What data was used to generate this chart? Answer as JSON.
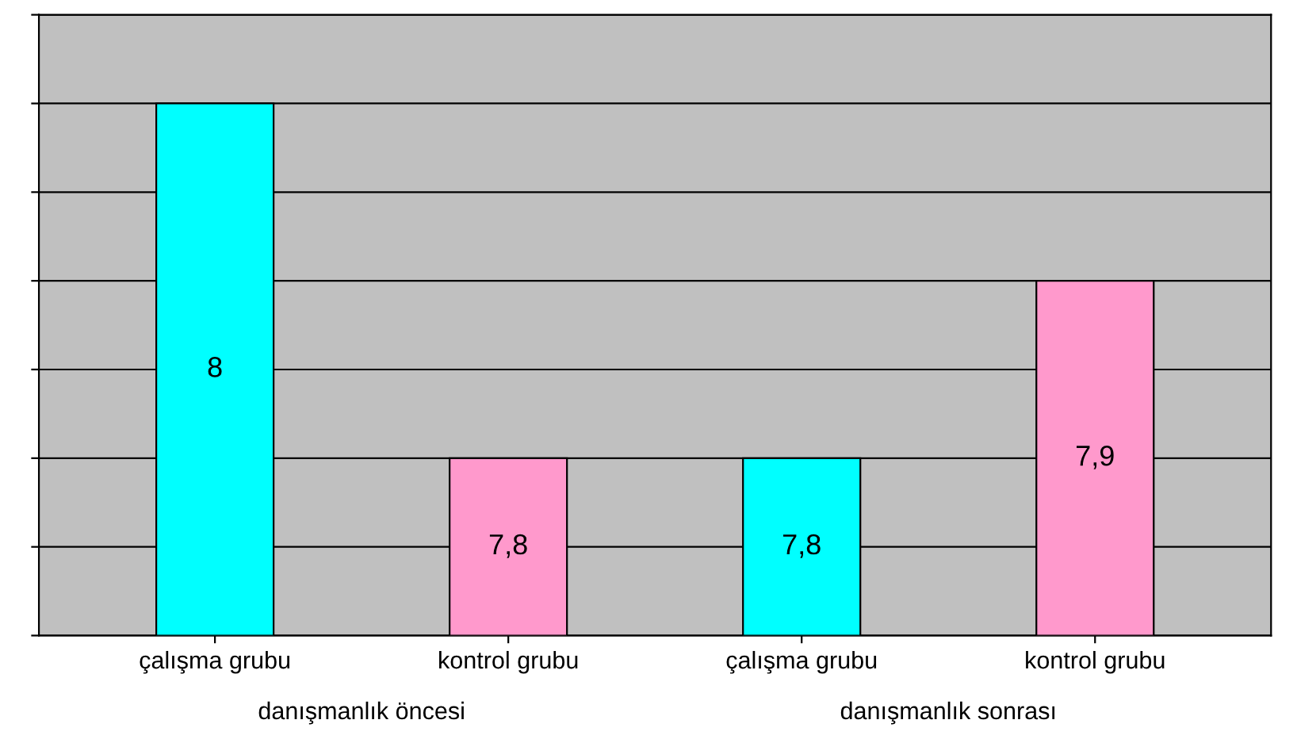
{
  "chart_data": {
    "type": "bar",
    "categories": [
      "çalışma grubu",
      "kontrol grubu",
      "çalışma grubu",
      "kontrol grubu"
    ],
    "values": [
      8,
      7.8,
      7.8,
      7.9
    ],
    "value_labels": [
      "8",
      "7,8",
      "7,8",
      "7,9"
    ],
    "colors": [
      "#00ffff",
      "#ff99cc",
      "#00ffff",
      "#ff99cc"
    ],
    "ylim": [
      7.7,
      8.05
    ],
    "yticks": [
      {
        "value": 7.7,
        "label": null
      },
      {
        "value": 7.75,
        "label": null
      },
      {
        "value": 7.8,
        "label": null
      },
      {
        "value": 7.85,
        "label": null
      },
      {
        "value": 7.9,
        "label": null
      },
      {
        "value": 7.95,
        "label": null
      },
      {
        "value": 8.0,
        "label": null
      },
      {
        "value": 8.05,
        "label": null
      }
    ],
    "tick_labels": "x",
    "grid": "y",
    "annotations": [
      "danışmanlık öncesi",
      "danışmanlık sonrası"
    ]
  }
}
